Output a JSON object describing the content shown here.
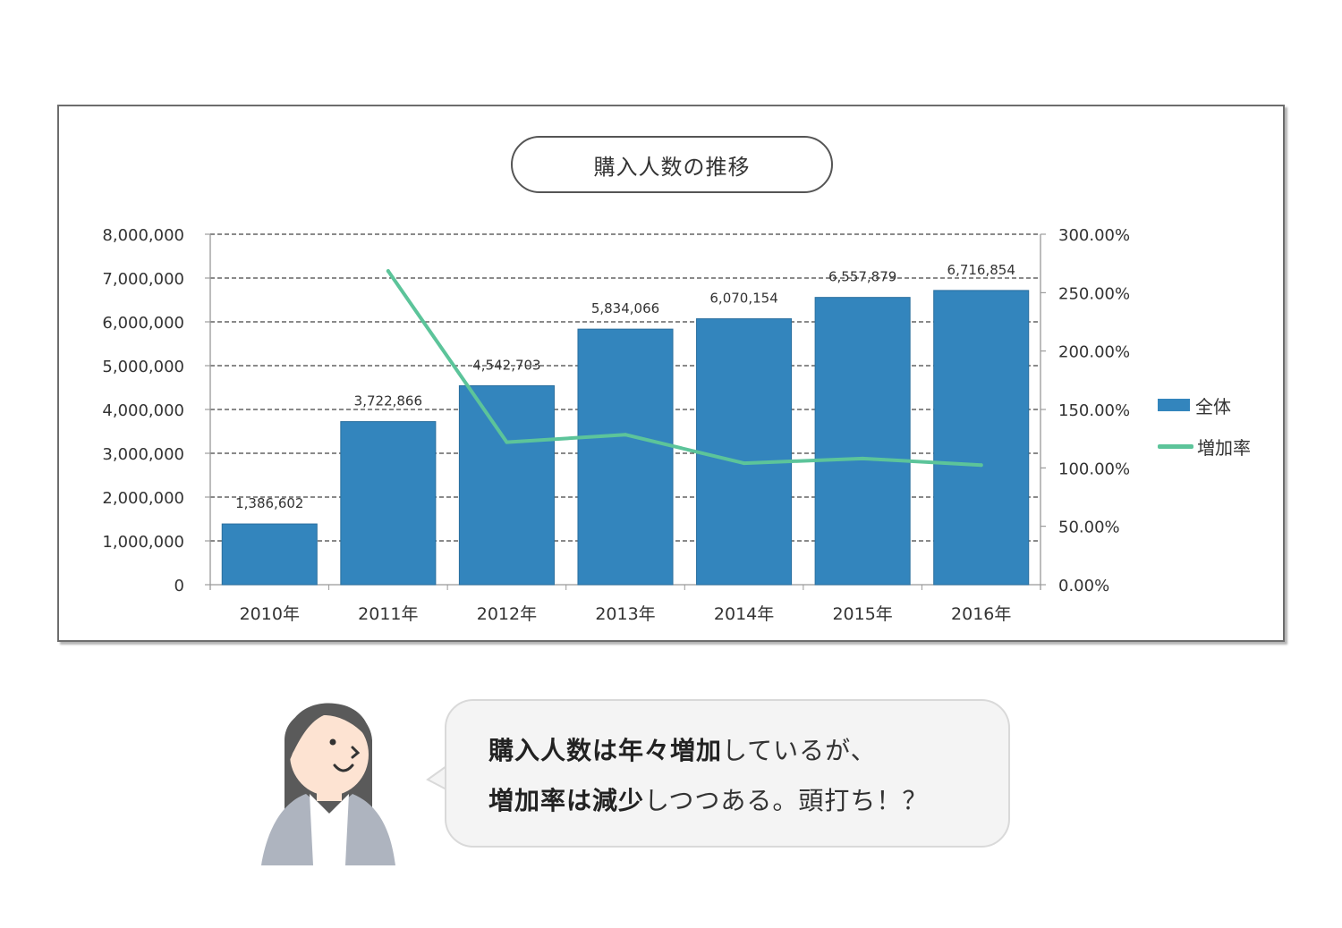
{
  "chart_data": {
    "type": "bar",
    "title": "購入人数の推移",
    "categories": [
      "2010年",
      "2011年",
      "2012年",
      "2013年",
      "2014年",
      "2015年",
      "2016年"
    ],
    "series": [
      {
        "name": "全体",
        "kind": "bar",
        "axis": "left",
        "color": "#3385bd",
        "values": [
          1386602,
          3722866,
          4542703,
          5834066,
          6070154,
          6557879,
          6716854
        ],
        "labels": [
          "1,386,602",
          "3,722,866",
          "4,542,703",
          "5,834,066",
          "6,070,154",
          "6,557,879",
          "6,716,854"
        ]
      },
      {
        "name": "増加率",
        "kind": "line",
        "axis": "right",
        "color": "#5cc49a",
        "values": [
          null,
          268.5,
          122.0,
          128.4,
          104.0,
          108.0,
          102.4
        ]
      }
    ],
    "y_left": {
      "ylim": [
        0,
        8000000
      ],
      "ticks": [
        "0",
        "1,000,000",
        "2,000,000",
        "3,000,000",
        "4,000,000",
        "5,000,000",
        "6,000,000",
        "7,000,000",
        "8,000,000"
      ]
    },
    "y_right": {
      "ylim": [
        0,
        300
      ],
      "ticks": [
        "0.00%",
        "50.00%",
        "100.00%",
        "150.00%",
        "200.00%",
        "250.00%",
        "300.00%"
      ]
    },
    "grid": "dashed horizontal",
    "legend_position": "right"
  },
  "legend": {
    "bar_label": "全体",
    "line_label": "増加率"
  },
  "comment": {
    "line1_bold": "購入人数は年々増加",
    "line1_rest": "しているが、",
    "line2_bold": "増加率は減少",
    "line2_rest": "しつつある。頭打ち！？"
  },
  "colors": {
    "bar": "#3385bd",
    "line": "#5cc49a",
    "skin": "#fde3d2",
    "hair": "#5a5a5a",
    "jacket": "#aeb4bf"
  }
}
